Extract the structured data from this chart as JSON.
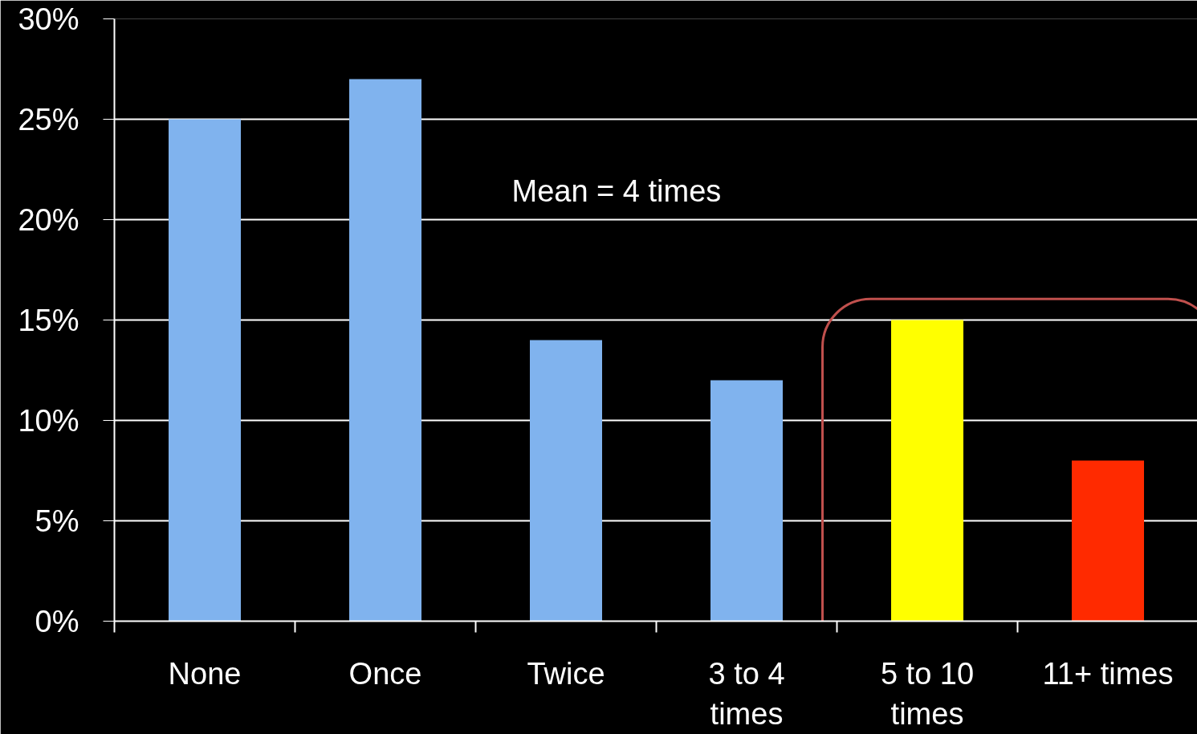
{
  "chart_data": {
    "type": "bar",
    "categories": [
      "None",
      "Once",
      "Twice",
      "3 to 4 times",
      "5 to 10 times",
      "11+ times"
    ],
    "values": [
      25,
      27,
      14,
      12,
      15,
      8
    ],
    "colors": [
      "#80b3ee",
      "#80b3ee",
      "#80b3ee",
      "#80b3ee",
      "#ffff00",
      "#ff2a00"
    ],
    "ylim": [
      0,
      30
    ],
    "yticks": [
      {
        "value": 0,
        "label": "0%"
      },
      {
        "value": 5,
        "label": "5%"
      },
      {
        "value": 10,
        "label": "10%"
      },
      {
        "value": 15,
        "label": "15%"
      },
      {
        "value": 20,
        "label": "20%"
      },
      {
        "value": 25,
        "label": "25%"
      },
      {
        "value": 30,
        "label": "30%"
      }
    ],
    "grid": "y",
    "annotations": [
      "Mean =  4 times"
    ]
  }
}
